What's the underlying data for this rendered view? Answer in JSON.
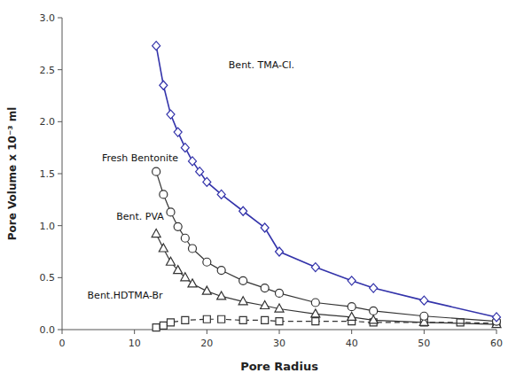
{
  "chart_data": {
    "type": "line",
    "xlabel": "Pore Radius",
    "ylabel": "Pore Volume x 10⁻³ ml",
    "xlim": [
      0,
      60
    ],
    "ylim": [
      0,
      3.0
    ],
    "xticks": [
      0,
      10,
      20,
      30,
      40,
      50,
      60
    ],
    "yticks": [
      {
        "value": 0,
        "label": "0.0"
      },
      0.5,
      {
        "value": 1.0,
        "label": "1.0"
      },
      1.5,
      {
        "value": 2.0,
        "label": "2.0"
      },
      2.5,
      {
        "value": 3.0,
        "label": "3.0"
      }
    ],
    "series": [
      {
        "color": "#333333",
        "marker": "square",
        "line_style": "dashed",
        "x": [
          13,
          14,
          15,
          17,
          20,
          22,
          25,
          28,
          30,
          35,
          40,
          43,
          50,
          55,
          60
        ],
        "values": [
          0.02,
          0.04,
          0.07,
          0.09,
          0.1,
          0.1,
          0.09,
          0.09,
          0.08,
          0.08,
          0.08,
          0.07,
          0.07,
          0.07,
          0.06
        ]
      },
      {
        "color": "#333333",
        "marker": "triangle",
        "line_style": "solid",
        "x": [
          13,
          14,
          15,
          16,
          17,
          18,
          20,
          22,
          25,
          28,
          30,
          35,
          40,
          43,
          50,
          60
        ],
        "values": [
          0.92,
          0.78,
          0.65,
          0.57,
          0.5,
          0.44,
          0.37,
          0.32,
          0.27,
          0.23,
          0.2,
          0.15,
          0.12,
          0.09,
          0.07,
          0.05
        ]
      },
      {
        "color": "#333333",
        "marker": "circle",
        "line_style": "solid",
        "x": [
          13,
          14,
          15,
          16,
          17,
          18,
          20,
          22,
          25,
          28,
          30,
          35,
          40,
          43,
          50,
          60
        ],
        "values": [
          1.52,
          1.3,
          1.13,
          0.99,
          0.88,
          0.78,
          0.65,
          0.57,
          0.47,
          0.4,
          0.35,
          0.26,
          0.22,
          0.18,
          0.13,
          0.08
        ]
      },
      {
        "color": "#3333aa",
        "marker": "diamond",
        "line_style": "solid",
        "x": [
          13,
          14,
          15,
          16,
          17,
          18,
          19,
          20,
          22,
          25,
          28,
          30,
          35,
          40,
          43,
          50,
          60
        ],
        "values": [
          2.73,
          2.35,
          2.07,
          1.9,
          1.75,
          1.62,
          1.52,
          1.42,
          1.3,
          1.14,
          0.98,
          0.75,
          0.6,
          0.47,
          0.4,
          0.28,
          0.12
        ]
      }
    ],
    "annotations": [
      {
        "text": "Bent. TMA-Cl.",
        "x": 23.0,
        "y": 2.5
      },
      {
        "text": "Fresh Bentonite",
        "x": 5.5,
        "y": 1.6
      },
      {
        "text": "Bent. PVA",
        "x": 7.5,
        "y": 1.04
      },
      {
        "text": "Bent.HDTMA-Br",
        "x": 3.5,
        "y": 0.28
      }
    ]
  }
}
